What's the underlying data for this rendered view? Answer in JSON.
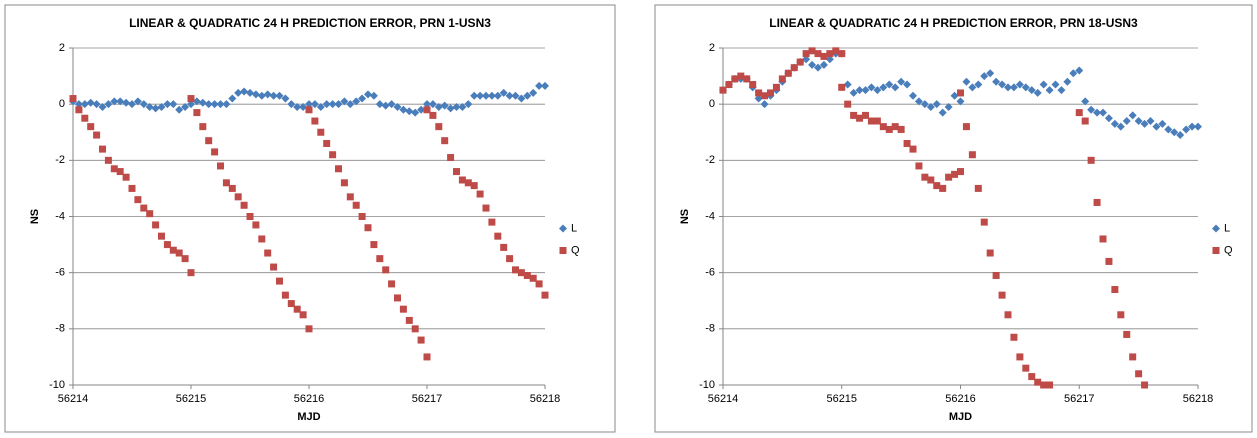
{
  "chart_data": [
    {
      "type": "scatter",
      "title": "LINEAR & QUADRATIC 24 H PREDICTION ERROR, PRN 1-USN3",
      "xlabel": "MJD",
      "ylabel": "NS",
      "xlim": [
        56214,
        56218
      ],
      "xticks": [
        56214,
        56215,
        56216,
        56217,
        56218
      ],
      "ylim": [
        -10,
        2
      ],
      "yticks": [
        -10,
        -8,
        -6,
        -4,
        -2,
        0,
        2
      ],
      "grid": true,
      "legend": "right",
      "series": [
        {
          "name": "L",
          "color": "#4a7ebb",
          "marker": "diamond",
          "x": [
            56214,
            56214.05,
            56214.1,
            56214.15,
            56214.2,
            56214.25,
            56214.3,
            56214.35,
            56214.4,
            56214.45,
            56214.5,
            56214.55,
            56214.6,
            56214.65,
            56214.7,
            56214.75,
            56214.8,
            56214.85,
            56214.9,
            56214.95,
            56215,
            56215.05,
            56215.1,
            56215.15,
            56215.2,
            56215.25,
            56215.3,
            56215.35,
            56215.4,
            56215.45,
            56215.5,
            56215.55,
            56215.6,
            56215.65,
            56215.7,
            56215.75,
            56215.8,
            56215.85,
            56215.9,
            56215.95,
            56216,
            56216.05,
            56216.1,
            56216.15,
            56216.2,
            56216.25,
            56216.3,
            56216.35,
            56216.4,
            56216.45,
            56216.5,
            56216.55,
            56216.6,
            56216.65,
            56216.7,
            56216.75,
            56216.8,
            56216.85,
            56216.9,
            56216.95,
            56217,
            56217.05,
            56217.1,
            56217.15,
            56217.2,
            56217.25,
            56217.3,
            56217.35,
            56217.4,
            56217.45,
            56217.5,
            56217.55,
            56217.6,
            56217.65,
            56217.7,
            56217.75,
            56217.8,
            56217.85,
            56217.9,
            56217.95,
            56218
          ],
          "values": [
            0.1,
            0.0,
            0.0,
            0.05,
            0.0,
            -0.1,
            0.0,
            0.1,
            0.1,
            0.05,
            0.0,
            0.1,
            0.0,
            -0.1,
            -0.15,
            -0.1,
            0.0,
            0.0,
            -0.2,
            -0.1,
            0.0,
            0.1,
            0.05,
            0.0,
            0.0,
            0.0,
            0.0,
            0.2,
            0.4,
            0.45,
            0.4,
            0.35,
            0.3,
            0.35,
            0.3,
            0.3,
            0.2,
            0.0,
            -0.1,
            -0.1,
            0.0,
            0.0,
            -0.1,
            0.0,
            0.0,
            0.0,
            0.1,
            0.0,
            0.1,
            0.2,
            0.35,
            0.3,
            0.0,
            -0.05,
            0.0,
            -0.1,
            -0.2,
            -0.25,
            -0.3,
            -0.2,
            0.0,
            0.0,
            -0.1,
            -0.05,
            -0.15,
            -0.1,
            -0.1,
            0.0,
            0.3,
            0.3,
            0.3,
            0.3,
            0.3,
            0.4,
            0.3,
            0.3,
            0.2,
            0.3,
            0.4,
            0.65,
            0.65
          ]
        },
        {
          "name": "Q",
          "color": "#be4b48",
          "marker": "square",
          "x": [
            56214,
            56214.05,
            56214.1,
            56214.15,
            56214.2,
            56214.25,
            56214.3,
            56214.35,
            56214.4,
            56214.45,
            56214.5,
            56214.55,
            56214.6,
            56214.65,
            56214.7,
            56214.75,
            56214.8,
            56214.85,
            56214.9,
            56214.95,
            56215,
            56215,
            56215.05,
            56215.1,
            56215.15,
            56215.2,
            56215.25,
            56215.3,
            56215.35,
            56215.4,
            56215.45,
            56215.5,
            56215.55,
            56215.6,
            56215.65,
            56215.7,
            56215.75,
            56215.8,
            56215.85,
            56215.9,
            56215.95,
            56216,
            56216,
            56216.05,
            56216.1,
            56216.15,
            56216.2,
            56216.25,
            56216.3,
            56216.35,
            56216.4,
            56216.45,
            56216.5,
            56216.55,
            56216.6,
            56216.65,
            56216.7,
            56216.75,
            56216.8,
            56216.85,
            56216.9,
            56216.95,
            56217,
            56217,
            56217.05,
            56217.1,
            56217.15,
            56217.2,
            56217.25,
            56217.3,
            56217.35,
            56217.4,
            56217.45,
            56217.5,
            56217.55,
            56217.6,
            56217.65,
            56217.7,
            56217.75,
            56217.8,
            56217.85,
            56217.9,
            56217.95,
            56218
          ],
          "values": [
            0.2,
            -0.2,
            -0.5,
            -0.8,
            -1.1,
            -1.6,
            -2.0,
            -2.3,
            -2.4,
            -2.6,
            -3.0,
            -3.4,
            -3.7,
            -3.9,
            -4.3,
            -4.7,
            -5.0,
            -5.2,
            -5.3,
            -5.5,
            -6.0,
            0.2,
            -0.3,
            -0.8,
            -1.3,
            -1.7,
            -2.2,
            -2.8,
            -3.0,
            -3.3,
            -3.6,
            -4.0,
            -4.3,
            -4.8,
            -5.3,
            -5.8,
            -6.3,
            -6.8,
            -7.1,
            -7.3,
            -7.5,
            -8.0,
            -0.2,
            -0.6,
            -1.0,
            -1.4,
            -1.8,
            -2.3,
            -2.8,
            -3.3,
            -3.6,
            -4.0,
            -4.4,
            -5.0,
            -5.5,
            -5.9,
            -6.4,
            -6.9,
            -7.3,
            -7.7,
            -8.0,
            -8.4,
            -9.0,
            -0.2,
            -0.4,
            -0.8,
            -1.3,
            -1.9,
            -2.4,
            -2.7,
            -2.8,
            -2.9,
            -3.2,
            -3.7,
            -4.2,
            -4.7,
            -5.1,
            -5.5,
            -5.9,
            -6.0,
            -6.1,
            -6.2,
            -6.4,
            -6.8
          ]
        }
      ]
    },
    {
      "type": "scatter",
      "title": "LINEAR & QUADRATIC 24 H PREDICTION ERROR, PRN 18-USN3",
      "xlabel": "MJD",
      "ylabel": "NS",
      "xlim": [
        56214,
        56218
      ],
      "xticks": [
        56214,
        56215,
        56216,
        56217,
        56218
      ],
      "ylim": [
        -10,
        2
      ],
      "yticks": [
        -10,
        -8,
        -6,
        -4,
        -2,
        0,
        2
      ],
      "grid": true,
      "legend": "right",
      "series": [
        {
          "name": "L",
          "color": "#4a7ebb",
          "marker": "diamond",
          "x": [
            56214,
            56214.05,
            56214.1,
            56214.15,
            56214.2,
            56214.25,
            56214.3,
            56214.35,
            56214.4,
            56214.45,
            56214.5,
            56214.55,
            56214.6,
            56214.65,
            56214.7,
            56214.75,
            56214.8,
            56214.85,
            56214.9,
            56214.95,
            56215,
            56215.05,
            56215.1,
            56215.15,
            56215.2,
            56215.25,
            56215.3,
            56215.35,
            56215.4,
            56215.45,
            56215.5,
            56215.55,
            56215.6,
            56215.65,
            56215.7,
            56215.75,
            56215.8,
            56215.85,
            56215.9,
            56215.95,
            56216,
            56216.05,
            56216.1,
            56216.15,
            56216.2,
            56216.25,
            56216.3,
            56216.35,
            56216.4,
            56216.45,
            56216.5,
            56216.55,
            56216.6,
            56216.65,
            56216.7,
            56216.75,
            56216.8,
            56216.85,
            56216.9,
            56216.95,
            56217,
            56217.05,
            56217.1,
            56217.15,
            56217.2,
            56217.25,
            56217.3,
            56217.35,
            56217.4,
            56217.45,
            56217.5,
            56217.55,
            56217.6,
            56217.65,
            56217.7,
            56217.75,
            56217.8,
            56217.85,
            56217.9,
            56217.95,
            56218
          ],
          "values": [
            0.5,
            0.7,
            0.9,
            0.9,
            0.9,
            0.6,
            0.2,
            0.0,
            0.3,
            0.5,
            0.8,
            1.1,
            1.3,
            1.5,
            1.6,
            1.4,
            1.3,
            1.4,
            1.6,
            1.8,
            1.8,
            0.7,
            0.4,
            0.5,
            0.5,
            0.6,
            0.5,
            0.6,
            0.7,
            0.6,
            0.8,
            0.7,
            0.3,
            0.1,
            0.0,
            -0.1,
            0.0,
            -0.3,
            -0.1,
            0.3,
            0.1,
            0.8,
            0.6,
            0.7,
            1.0,
            1.1,
            0.8,
            0.7,
            0.6,
            0.6,
            0.7,
            0.6,
            0.5,
            0.4,
            0.7,
            0.5,
            0.7,
            0.5,
            0.8,
            1.1,
            1.2,
            0.1,
            -0.2,
            -0.3,
            -0.3,
            -0.5,
            -0.7,
            -0.8,
            -0.6,
            -0.4,
            -0.6,
            -0.7,
            -0.6,
            -0.8,
            -0.7,
            -0.9,
            -1.0,
            -1.1,
            -0.9,
            -0.8,
            -0.8
          ]
        },
        {
          "name": "Q",
          "color": "#be4b48",
          "marker": "square",
          "x": [
            56214,
            56214.05,
            56214.1,
            56214.15,
            56214.2,
            56214.25,
            56214.3,
            56214.35,
            56214.4,
            56214.45,
            56214.5,
            56214.55,
            56214.6,
            56214.65,
            56214.7,
            56214.75,
            56214.8,
            56214.85,
            56214.9,
            56214.95,
            56215,
            56215,
            56215.05,
            56215.1,
            56215.15,
            56215.2,
            56215.25,
            56215.3,
            56215.35,
            56215.4,
            56215.45,
            56215.5,
            56215.55,
            56215.6,
            56215.65,
            56215.7,
            56215.75,
            56215.8,
            56215.85,
            56215.9,
            56215.95,
            56216,
            56216,
            56216.05,
            56216.1,
            56216.15,
            56216.2,
            56216.25,
            56216.3,
            56216.35,
            56216.4,
            56216.45,
            56216.5,
            56216.55,
            56216.6,
            56216.65,
            56216.7,
            56216.75,
            56217,
            56217.05,
            56217.1,
            56217.15,
            56217.2,
            56217.25,
            56217.3,
            56217.35,
            56217.4,
            56217.45,
            56217.5,
            56217.55
          ],
          "values": [
            0.5,
            0.7,
            0.9,
            1.0,
            0.9,
            0.7,
            0.4,
            0.3,
            0.4,
            0.6,
            0.9,
            1.1,
            1.3,
            1.5,
            1.8,
            1.9,
            1.8,
            1.7,
            1.8,
            1.9,
            1.8,
            0.6,
            0.0,
            -0.4,
            -0.5,
            -0.4,
            -0.6,
            -0.6,
            -0.8,
            -0.9,
            -0.8,
            -0.9,
            -1.4,
            -1.6,
            -2.2,
            -2.6,
            -2.7,
            -2.9,
            -3.0,
            -2.6,
            -2.5,
            -2.4,
            0.4,
            -0.8,
            -1.8,
            -3.0,
            -4.2,
            -5.3,
            -6.1,
            -6.8,
            -7.5,
            -8.3,
            -9.0,
            -9.4,
            -9.7,
            -9.9,
            -10.0,
            -10.0,
            -0.3,
            -0.6,
            -2.0,
            -3.5,
            -4.8,
            -5.6,
            -6.6,
            -7.5,
            -8.2,
            -9.0,
            -9.6,
            -10.0
          ]
        }
      ]
    }
  ]
}
